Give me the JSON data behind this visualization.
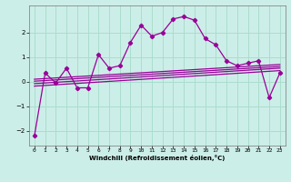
{
  "xlabel": "Windchill (Refroidissement éolien,°C)",
  "bg_color": "#cceee8",
  "grid_color": "#aaddcc",
  "line_color": "#990099",
  "x_ticks": [
    0,
    1,
    2,
    3,
    4,
    5,
    6,
    7,
    8,
    9,
    10,
    11,
    12,
    13,
    14,
    15,
    16,
    17,
    18,
    19,
    20,
    21,
    22,
    23
  ],
  "ylim": [
    -2.6,
    3.1
  ],
  "xlim": [
    -0.5,
    23.5
  ],
  "yticks": [
    -2,
    -1,
    0,
    1,
    2
  ],
  "main_series_x": [
    0,
    1,
    2,
    3,
    4,
    5,
    6,
    7,
    8,
    9,
    10,
    11,
    12,
    13,
    14,
    15,
    16,
    17,
    18,
    19,
    20,
    21,
    22,
    23
  ],
  "main_series_y": [
    -2.2,
    0.35,
    -0.05,
    0.55,
    -0.25,
    -0.25,
    1.1,
    0.55,
    0.65,
    1.6,
    2.3,
    1.85,
    2.0,
    2.55,
    2.65,
    2.5,
    1.75,
    1.5,
    0.85,
    0.65,
    0.75,
    0.85,
    -0.65,
    0.35
  ],
  "smooth_lines": [
    [
      [
        0,
        23
      ],
      [
        -0.18,
        0.45
      ]
    ],
    [
      [
        0,
        23
      ],
      [
        -0.08,
        0.55
      ]
    ],
    [
      [
        0,
        23
      ],
      [
        0.02,
        0.62
      ]
    ],
    [
      [
        0,
        23
      ],
      [
        0.1,
        0.7
      ]
    ]
  ],
  "tick_fontsize": 5,
  "xlabel_fontsize": 5
}
